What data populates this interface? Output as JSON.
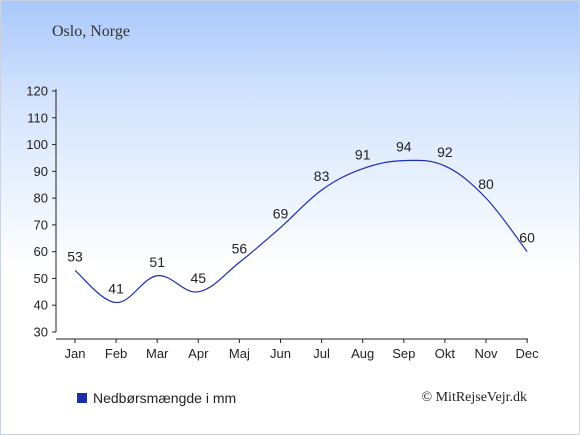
{
  "header": {
    "location": "Oslo, Norge"
  },
  "legend": {
    "label": "Nedbørsmængde i mm",
    "color": "#1a2fa8"
  },
  "footer": {
    "copyright": "© MitRejseVejr.dk"
  },
  "chart_data": {
    "type": "line",
    "title": "",
    "xlabel": "",
    "ylabel": "",
    "categories": [
      "Jan",
      "Feb",
      "Mar",
      "Apr",
      "Maj",
      "Jun",
      "Jul",
      "Aug",
      "Sep",
      "Okt",
      "Nov",
      "Dec"
    ],
    "series": [
      {
        "name": "Nedbørsmængde i mm",
        "values": [
          53,
          41,
          51,
          45,
          56,
          69,
          83,
          91,
          94,
          92,
          80,
          60
        ],
        "color": "#1a2fa8"
      }
    ],
    "ylim": [
      30,
      120
    ],
    "yticks": [
      30,
      40,
      50,
      60,
      70,
      80,
      90,
      100,
      110,
      120
    ],
    "grid": false,
    "data_labels": true,
    "legend_position": "bottom-left"
  }
}
